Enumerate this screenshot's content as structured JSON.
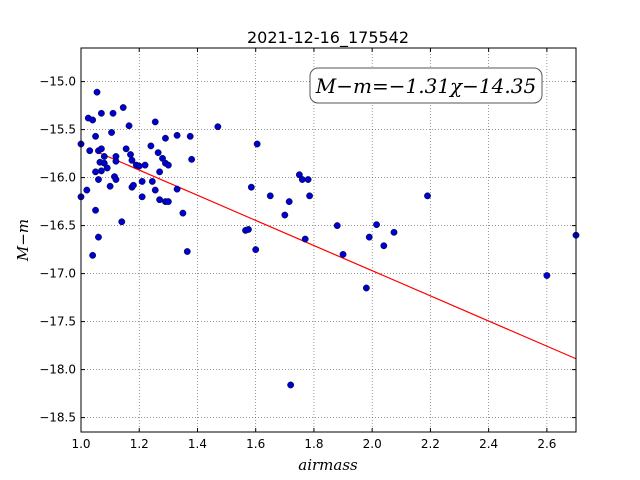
{
  "chart_data": {
    "type": "scatter",
    "title": "2021-12-16_175542",
    "xlabel": "airmass",
    "ylabel": "M−m",
    "xlim": [
      1.0,
      2.7
    ],
    "ylim": [
      -18.65,
      -14.65
    ],
    "y_inverted": true,
    "grid": true,
    "grid_style": "dotted",
    "x_ticks": [
      1.0,
      1.2,
      1.4,
      1.6,
      1.8,
      2.0,
      2.2,
      2.4,
      2.6
    ],
    "x_tick_labels": [
      "1.0",
      "1.2",
      "1.4",
      "1.6",
      "1.8",
      "2.0",
      "2.2",
      "2.4",
      "2.6"
    ],
    "y_ticks": [
      -15.0,
      -15.5,
      -16.0,
      -16.5,
      -17.0,
      -17.5,
      -18.0,
      -18.5
    ],
    "y_tick_labels": [
      "−15.0",
      "−15.5",
      "−16.0",
      "−16.5",
      "−17.0",
      "−17.5",
      "−18.0",
      "−18.5"
    ],
    "annotation": "M−m=−1.31χ−14.35",
    "fit": {
      "slope": -1.31,
      "intercept": -14.35,
      "x_range": [
        1.05,
        2.7
      ],
      "color": "#ff0000"
    },
    "marker_color": "#0000cc",
    "points": [
      [
        1.0,
        -15.65
      ],
      [
        1.0,
        -16.2
      ],
      [
        1.02,
        -16.13
      ],
      [
        1.025,
        -15.38
      ],
      [
        1.03,
        -15.72
      ],
      [
        1.04,
        -15.4
      ],
      [
        1.04,
        -16.81
      ],
      [
        1.05,
        -15.57
      ],
      [
        1.05,
        -15.94
      ],
      [
        1.05,
        -16.34
      ],
      [
        1.055,
        -15.11
      ],
      [
        1.06,
        -15.72
      ],
      [
        1.06,
        -16.02
      ],
      [
        1.06,
        -16.62
      ],
      [
        1.065,
        -15.84
      ],
      [
        1.07,
        -15.33
      ],
      [
        1.07,
        -15.7
      ],
      [
        1.07,
        -15.93
      ],
      [
        1.08,
        -15.78
      ],
      [
        1.08,
        -15.85
      ],
      [
        1.09,
        -15.9
      ],
      [
        1.1,
        -16.09
      ],
      [
        1.105,
        -15.53
      ],
      [
        1.11,
        -15.33
      ],
      [
        1.115,
        -15.99
      ],
      [
        1.12,
        -15.78
      ],
      [
        1.12,
        -15.83
      ],
      [
        1.12,
        -16.02
      ],
      [
        1.14,
        -16.46
      ],
      [
        1.145,
        -15.27
      ],
      [
        1.155,
        -15.7
      ],
      [
        1.165,
        -15.46
      ],
      [
        1.17,
        -15.76
      ],
      [
        1.175,
        -15.82
      ],
      [
        1.175,
        -16.1
      ],
      [
        1.18,
        -16.08
      ],
      [
        1.19,
        -15.87
      ],
      [
        1.2,
        -15.88
      ],
      [
        1.21,
        -16.04
      ],
      [
        1.21,
        -16.2
      ],
      [
        1.22,
        -15.87
      ],
      [
        1.24,
        -15.67
      ],
      [
        1.245,
        -16.04
      ],
      [
        1.255,
        -16.13
      ],
      [
        1.255,
        -15.42
      ],
      [
        1.265,
        -15.74
      ],
      [
        1.27,
        -15.94
      ],
      [
        1.27,
        -16.23
      ],
      [
        1.28,
        -15.8
      ],
      [
        1.29,
        -15.59
      ],
      [
        1.29,
        -15.85
      ],
      [
        1.29,
        -16.25
      ],
      [
        1.3,
        -15.87
      ],
      [
        1.3,
        -16.25
      ],
      [
        1.33,
        -15.56
      ],
      [
        1.33,
        -16.12
      ],
      [
        1.35,
        -16.37
      ],
      [
        1.365,
        -16.77
      ],
      [
        1.375,
        -15.57
      ],
      [
        1.38,
        -15.81
      ],
      [
        1.47,
        -15.47
      ],
      [
        1.565,
        -16.55
      ],
      [
        1.575,
        -16.54
      ],
      [
        1.585,
        -16.1
      ],
      [
        1.6,
        -16.75
      ],
      [
        1.605,
        -15.65
      ],
      [
        1.65,
        -16.19
      ],
      [
        1.7,
        -16.39
      ],
      [
        1.715,
        -16.25
      ],
      [
        1.72,
        -18.16
      ],
      [
        1.75,
        -15.97
      ],
      [
        1.76,
        -16.02
      ],
      [
        1.77,
        -16.64
      ],
      [
        1.78,
        -16.02
      ],
      [
        1.785,
        -16.19
      ],
      [
        1.88,
        -16.5
      ],
      [
        1.9,
        -16.8
      ],
      [
        1.98,
        -17.15
      ],
      [
        1.99,
        -16.62
      ],
      [
        2.015,
        -16.49
      ],
      [
        2.04,
        -16.71
      ],
      [
        2.075,
        -16.57
      ],
      [
        2.19,
        -16.19
      ],
      [
        2.6,
        -17.02
      ],
      [
        2.7,
        -16.6
      ]
    ]
  }
}
